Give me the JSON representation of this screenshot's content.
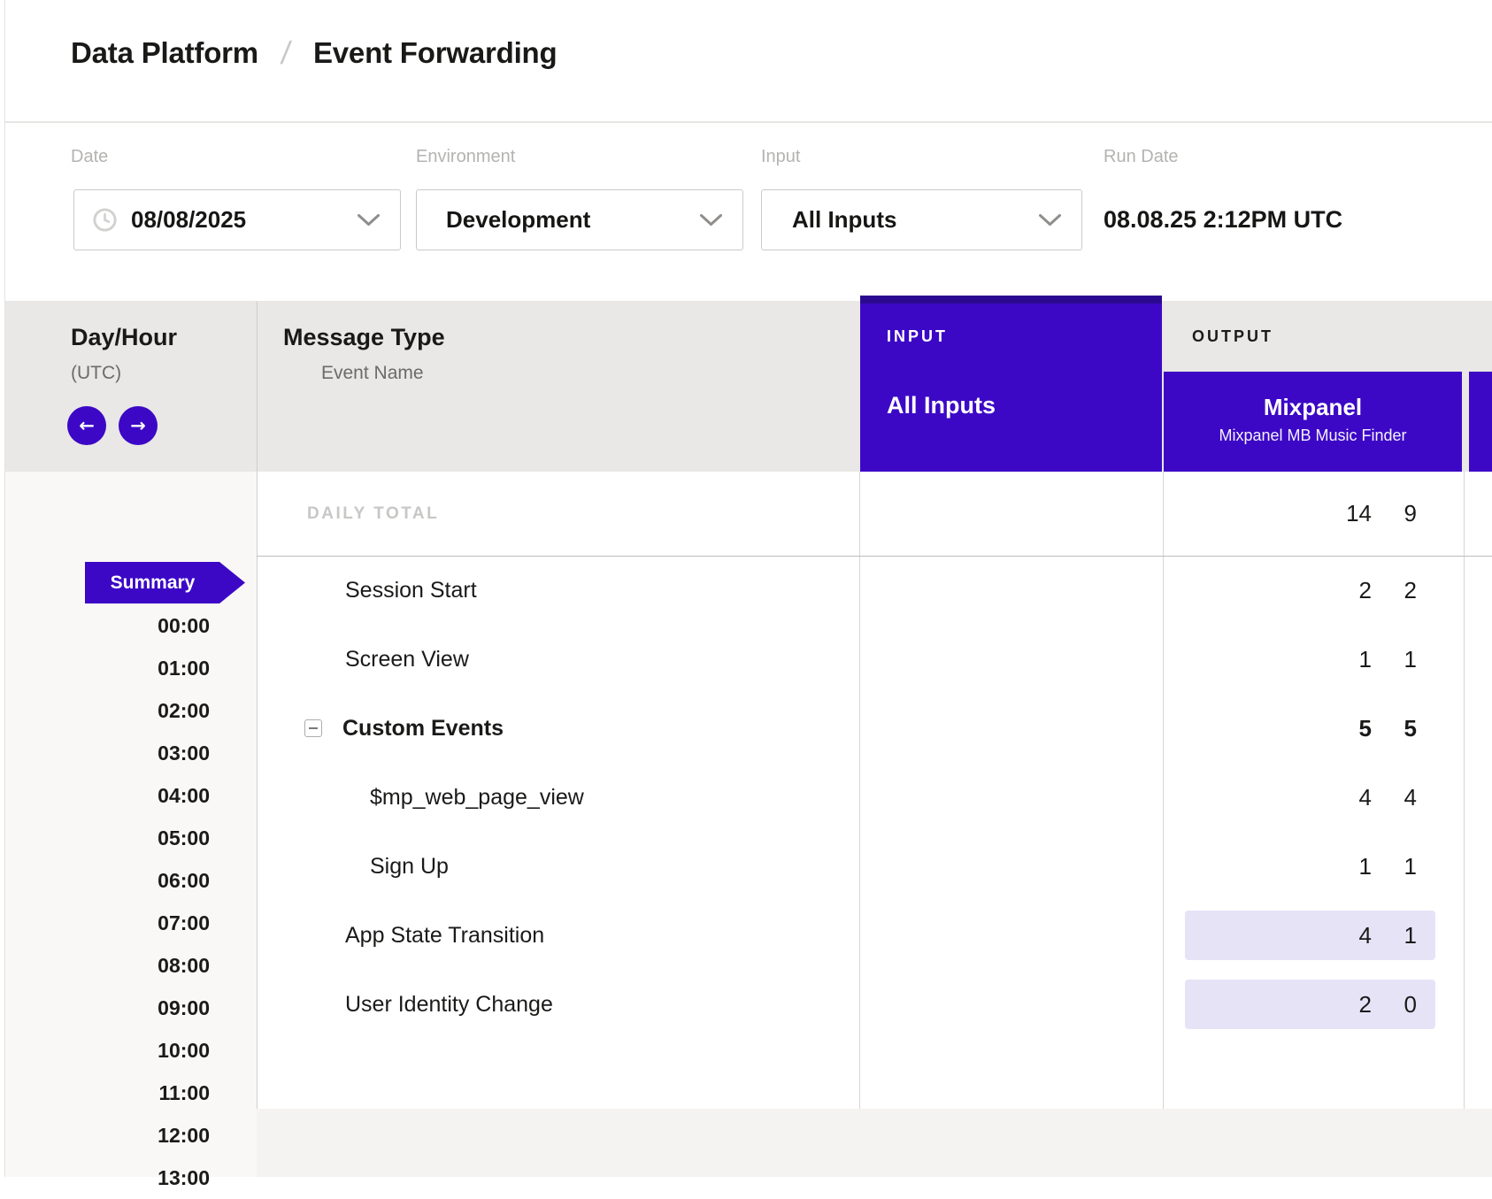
{
  "breadcrumb": {
    "section": "Data Platform",
    "separator": "/",
    "page": "Event Forwarding"
  },
  "filters": {
    "date": {
      "label": "Date",
      "value": "08/08/2025"
    },
    "environment": {
      "label": "Environment",
      "value": "Development"
    },
    "input": {
      "label": "Input",
      "value": "All Inputs"
    },
    "run_date": {
      "label": "Run Date",
      "value": "08.08.25 2:12PM UTC"
    }
  },
  "icons": {
    "clock": "clock-icon",
    "chevron_down": "chevron-down-icon",
    "prev_arrow": "←",
    "next_arrow": "→"
  },
  "table": {
    "day_hour": {
      "title": "Day/Hour",
      "subtitle": "(UTC)"
    },
    "message_type": {
      "title": "Message Type",
      "subtitle": "Event Name"
    },
    "input_col": {
      "section_label": "INPUT",
      "name": "All Inputs"
    },
    "output_col": {
      "section_label": "OUTPUT",
      "name": "Mixpanel",
      "subtitle": "Mixpanel MB Music Finder"
    },
    "daily_total": {
      "label": "DAILY TOTAL",
      "input": "14",
      "output": "9"
    },
    "rows": [
      {
        "name": "Session Start",
        "input": "2",
        "output": "2",
        "bold": false,
        "indent": false,
        "expander": false,
        "highlight": false
      },
      {
        "name": "Screen View",
        "input": "1",
        "output": "1",
        "bold": false,
        "indent": false,
        "expander": false,
        "highlight": false
      },
      {
        "name": "Custom Events",
        "input": "5",
        "output": "5",
        "bold": true,
        "indent": false,
        "expander": true,
        "highlight": false
      },
      {
        "name": "$mp_web_page_view",
        "input": "4",
        "output": "4",
        "bold": false,
        "indent": true,
        "expander": false,
        "highlight": false
      },
      {
        "name": "Sign Up",
        "input": "1",
        "output": "1",
        "bold": false,
        "indent": true,
        "expander": false,
        "highlight": false
      },
      {
        "name": "App State Transition",
        "input": "4",
        "output": "1",
        "bold": false,
        "indent": false,
        "expander": false,
        "highlight": true
      },
      {
        "name": "User Identity Change",
        "input": "2",
        "output": "0",
        "bold": false,
        "indent": false,
        "expander": false,
        "highlight": true
      }
    ],
    "sidebar": {
      "summary": "Summary",
      "hours": [
        "00:00",
        "01:00",
        "02:00",
        "03:00",
        "04:00",
        "05:00",
        "06:00",
        "07:00",
        "08:00",
        "09:00",
        "10:00",
        "11:00",
        "12:00",
        "13:00"
      ]
    }
  },
  "colors": {
    "purple": "#3c08c6",
    "purple_dark": "#2c0a90",
    "highlight_cell": "#e7e3f7",
    "header_band": "#e9e8e6"
  }
}
